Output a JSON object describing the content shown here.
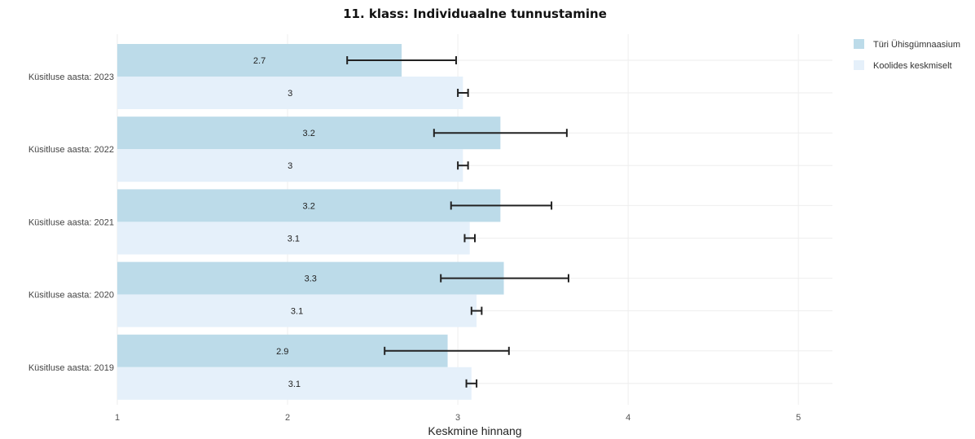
{
  "chart_data": {
    "type": "bar",
    "orientation": "horizontal",
    "title": "11. klass: Individuaalne tunnustamine",
    "xlabel": "Keskmine hinnang",
    "ylabel": "",
    "xlim": [
      1,
      5.2
    ],
    "xticks": [
      1,
      2,
      3,
      4,
      5
    ],
    "grid": true,
    "legend_position": "top-right",
    "categories": [
      "Küsitluse aasta: 2023",
      "Küsitluse aasta: 2022",
      "Küsitluse aasta: 2021",
      "Küsitluse aasta: 2020",
      "Küsitluse aasta: 2019"
    ],
    "series": [
      {
        "name": "Türi Ühisgümnaasium",
        "color": "#bcdbe9",
        "values": [
          2.67,
          3.25,
          3.25,
          3.27,
          2.94
        ],
        "labels": [
          "2.7",
          "3.2",
          "3.2",
          "3.3",
          "2.9"
        ],
        "error_low": [
          2.35,
          2.86,
          2.96,
          2.9,
          2.57
        ],
        "error_high": [
          2.99,
          3.64,
          3.55,
          3.65,
          3.3
        ]
      },
      {
        "name": "Koolides keskmiselt",
        "color": "#e5f0fa",
        "values": [
          3.03,
          3.03,
          3.07,
          3.11,
          3.08
        ],
        "labels": [
          "3",
          "3",
          "3.1",
          "3.1",
          "3.1"
        ],
        "error_low": [
          3.0,
          3.0,
          3.04,
          3.08,
          3.05
        ],
        "error_high": [
          3.06,
          3.06,
          3.1,
          3.14,
          3.11
        ]
      }
    ]
  }
}
